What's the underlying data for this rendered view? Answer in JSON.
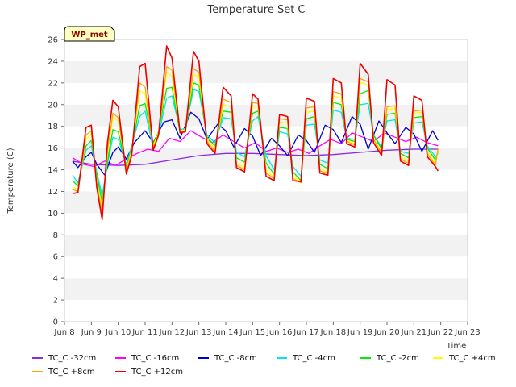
{
  "chart_data": {
    "type": "line",
    "title": "Temperature Set C",
    "xlabel": "Time",
    "ylabel": "Temperature (C)",
    "xlim": [
      8,
      23
    ],
    "ylim": [
      0,
      26
    ],
    "yticks": [
      0,
      2,
      4,
      6,
      8,
      10,
      12,
      14,
      16,
      18,
      20,
      22,
      24,
      26
    ],
    "xticks": [
      {
        "v": 8,
        "label": "Jun 8"
      },
      {
        "v": 9,
        "label": "Jun 9"
      },
      {
        "v": 10,
        "label": "Jun 10"
      },
      {
        "v": 11,
        "label": "Jun 11"
      },
      {
        "v": 12,
        "label": "Jun 12"
      },
      {
        "v": 13,
        "label": "Jun 13"
      },
      {
        "v": 14,
        "label": "Jun 14"
      },
      {
        "v": 15,
        "label": "Jun 15"
      },
      {
        "v": 16,
        "label": "Jun 16"
      },
      {
        "v": 17,
        "label": "Jun 17"
      },
      {
        "v": 18,
        "label": "Jun 18"
      },
      {
        "v": 19,
        "label": "Jun 19"
      },
      {
        "v": 20,
        "label": "Jun 20"
      },
      {
        "v": 21,
        "label": "Jun 21"
      },
      {
        "v": 22,
        "label": "Jun 22"
      },
      {
        "v": 23,
        "label": "Jun 23"
      }
    ],
    "grid": "horizontal bands",
    "legend_position": "bottom",
    "badge": "WP_met",
    "series": [
      {
        "name": "TC_C -32cm",
        "color": "#8a2be2",
        "x": [
          8.3,
          9.0,
          10.0,
          11.0,
          12.0,
          13.0,
          14.0,
          15.0,
          16.0,
          17.0,
          18.0,
          19.0,
          20.0,
          21.0,
          21.9
        ],
        "y": [
          14.8,
          14.5,
          14.4,
          14.5,
          14.9,
          15.3,
          15.5,
          15.5,
          15.4,
          15.3,
          15.4,
          15.6,
          15.8,
          15.9,
          15.9
        ]
      },
      {
        "name": "TC_C -16cm",
        "color": "#ff00ff",
        "x": [
          8.3,
          8.7,
          9.1,
          9.5,
          9.9,
          10.3,
          10.7,
          11.1,
          11.5,
          11.9,
          12.3,
          12.7,
          13.1,
          13.5,
          13.9,
          14.3,
          14.7,
          15.1,
          15.5,
          15.9,
          16.3,
          16.7,
          17.1,
          17.5,
          17.9,
          18.3,
          18.7,
          19.1,
          19.5,
          19.9,
          20.3,
          20.7,
          21.1,
          21.5,
          21.9
        ],
        "y": [
          15.1,
          14.5,
          14.3,
          14.8,
          14.4,
          15.0,
          15.5,
          15.9,
          15.7,
          16.9,
          16.6,
          17.6,
          17.0,
          16.5,
          17.2,
          16.6,
          16.0,
          16.5,
          15.7,
          16.0,
          15.6,
          15.9,
          15.5,
          16.2,
          16.8,
          16.4,
          17.4,
          17.0,
          16.6,
          17.4,
          17.0,
          16.6,
          17.0,
          16.5,
          16.2
        ]
      },
      {
        "name": "TC_C -8cm",
        "color": "#0000cd",
        "x": [
          8.3,
          8.5,
          8.8,
          9.0,
          9.2,
          9.5,
          9.8,
          10.0,
          10.3,
          10.6,
          11.0,
          11.3,
          11.7,
          12.0,
          12.3,
          12.7,
          13.0,
          13.3,
          13.7,
          14.0,
          14.3,
          14.7,
          15.0,
          15.3,
          15.7,
          16.0,
          16.3,
          16.7,
          17.0,
          17.3,
          17.7,
          18.0,
          18.3,
          18.7,
          19.0,
          19.3,
          19.7,
          20.0,
          20.3,
          20.7,
          21.0,
          21.3,
          21.7,
          21.9
        ],
        "y": [
          14.8,
          14.2,
          15.2,
          15.6,
          14.5,
          13.5,
          15.6,
          16.1,
          15.0,
          16.5,
          17.6,
          16.5,
          18.4,
          18.6,
          16.9,
          19.3,
          18.7,
          16.8,
          18.2,
          17.6,
          16.1,
          17.8,
          17.1,
          15.3,
          16.9,
          16.2,
          15.3,
          17.2,
          16.7,
          15.6,
          18.1,
          17.7,
          16.5,
          18.9,
          18.2,
          15.9,
          18.5,
          17.4,
          16.4,
          17.9,
          17.3,
          15.7,
          17.6,
          16.7
        ]
      },
      {
        "name": "TC_C -4cm",
        "color": "#00e5ee",
        "x": [
          8.3,
          8.5,
          8.8,
          9.0,
          9.2,
          9.4,
          9.6,
          9.8,
          10.0,
          10.3,
          10.5,
          10.8,
          11.0,
          11.3,
          11.5,
          11.8,
          12.0,
          12.3,
          12.5,
          12.8,
          13.0,
          13.3,
          13.6,
          13.9,
          14.2,
          14.4,
          14.7,
          15.0,
          15.2,
          15.5,
          15.8,
          16.0,
          16.3,
          16.5,
          16.8,
          17.0,
          17.3,
          17.5,
          17.8,
          18.0,
          18.3,
          18.5,
          18.8,
          19.0,
          19.3,
          19.5,
          19.8,
          20.0,
          20.3,
          20.5,
          20.8,
          21.0,
          21.3,
          21.5,
          21.8,
          21.9
        ],
        "y": [
          13.5,
          12.8,
          15.8,
          16.2,
          13.8,
          11.6,
          14.5,
          17.0,
          16.8,
          14.5,
          16.2,
          18.9,
          19.4,
          16.0,
          17.2,
          20.6,
          20.8,
          17.7,
          17.8,
          21.4,
          21.2,
          17.2,
          16.5,
          18.8,
          18.7,
          15.6,
          15.2,
          18.5,
          18.9,
          15.3,
          14.0,
          17.5,
          17.3,
          14.3,
          13.4,
          18.1,
          18.2,
          14.9,
          14.6,
          19.5,
          19.3,
          16.9,
          16.8,
          20.0,
          20.1,
          17.2,
          16.1,
          18.5,
          18.6,
          15.7,
          15.5,
          18.3,
          18.4,
          16.2,
          15.2,
          15.5
        ]
      },
      {
        "name": "TC_C -2cm",
        "color": "#00ee00",
        "x": [
          8.3,
          8.5,
          8.8,
          9.0,
          9.2,
          9.4,
          9.6,
          9.8,
          10.0,
          10.3,
          10.5,
          10.8,
          11.0,
          11.3,
          11.5,
          11.8,
          12.0,
          12.3,
          12.5,
          12.8,
          13.0,
          13.3,
          13.6,
          13.9,
          14.2,
          14.4,
          14.7,
          15.0,
          15.2,
          15.5,
          15.8,
          16.0,
          16.3,
          16.5,
          16.8,
          17.0,
          17.3,
          17.5,
          17.8,
          18.0,
          18.3,
          18.5,
          18.8,
          19.0,
          19.3,
          19.5,
          19.8,
          20.0,
          20.3,
          20.5,
          20.8,
          21.0,
          21.3,
          21.5,
          21.8,
          21.9
        ],
        "y": [
          13.0,
          12.5,
          16.2,
          16.7,
          13.5,
          11.0,
          14.8,
          17.7,
          17.5,
          14.2,
          16.0,
          19.9,
          20.1,
          16.4,
          17.5,
          21.5,
          21.6,
          17.4,
          17.6,
          22.0,
          21.8,
          17.0,
          16.2,
          19.4,
          19.3,
          15.1,
          14.7,
          19.2,
          19.4,
          14.6,
          13.6,
          17.9,
          17.8,
          13.8,
          13.0,
          18.7,
          18.9,
          14.5,
          14.1,
          20.2,
          20.0,
          16.8,
          16.6,
          21.0,
          21.3,
          17.2,
          15.9,
          19.1,
          19.2,
          15.5,
          15.1,
          18.8,
          18.9,
          16.0,
          14.9,
          15.7
        ]
      },
      {
        "name": "TC_C +4cm",
        "color": "#ffff00",
        "x": [
          8.3,
          8.5,
          8.8,
          9.0,
          9.2,
          9.4,
          9.6,
          9.8,
          10.0,
          10.3,
          10.5,
          10.8,
          11.0,
          11.3,
          11.5,
          11.8,
          12.0,
          12.3,
          12.5,
          12.8,
          13.0,
          13.3,
          13.6,
          13.9,
          14.2,
          14.4,
          14.7,
          15.0,
          15.2,
          15.5,
          15.8,
          16.0,
          16.3,
          16.5,
          16.8,
          17.0,
          17.3,
          17.5,
          17.8,
          18.0,
          18.3,
          18.5,
          18.8,
          19.0,
          19.3,
          19.5,
          19.8,
          20.0,
          20.3,
          20.5,
          20.8,
          21.0,
          21.3,
          21.5,
          21.8,
          21.9
        ],
        "y": [
          12.4,
          12.2,
          16.8,
          17.3,
          13.0,
          10.4,
          15.4,
          18.8,
          18.5,
          14.0,
          15.8,
          21.3,
          21.0,
          16.2,
          17.4,
          23.0,
          22.6,
          17.6,
          17.7,
          22.8,
          22.5,
          16.8,
          15.9,
          20.0,
          19.8,
          14.6,
          14.2,
          19.8,
          19.9,
          14.0,
          13.3,
          18.4,
          18.3,
          13.4,
          12.9,
          19.3,
          19.4,
          14.1,
          13.8,
          20.8,
          20.6,
          16.7,
          16.4,
          22.0,
          21.8,
          16.9,
          15.6,
          19.6,
          19.6,
          15.2,
          14.8,
          19.2,
          19.3,
          15.7,
          14.6,
          15.9
        ]
      },
      {
        "name": "TC_C +8cm",
        "color": "#ffa500",
        "x": [
          8.3,
          8.5,
          8.8,
          9.0,
          9.2,
          9.4,
          9.6,
          9.8,
          10.0,
          10.3,
          10.5,
          10.8,
          11.0,
          11.3,
          11.5,
          11.8,
          12.0,
          12.3,
          12.5,
          12.8,
          13.0,
          13.3,
          13.6,
          13.9,
          14.2,
          14.4,
          14.7,
          15.0,
          15.2,
          15.5,
          15.8,
          16.0,
          16.3,
          16.5,
          16.8,
          17.0,
          17.3,
          17.5,
          17.8,
          18.0,
          18.3,
          18.5,
          18.8,
          19.0,
          19.3,
          19.5,
          19.8,
          20.0,
          20.3,
          20.5,
          20.8,
          21.0,
          21.3,
          21.5,
          21.8,
          21.9
        ],
        "y": [
          12.2,
          12.0,
          17.2,
          17.6,
          12.8,
          10.0,
          15.8,
          19.2,
          18.8,
          13.8,
          15.6,
          22.0,
          21.6,
          16.0,
          17.3,
          23.5,
          23.2,
          17.5,
          17.6,
          23.3,
          23.0,
          16.6,
          15.7,
          20.5,
          20.2,
          14.4,
          14.0,
          20.2,
          20.1,
          13.7,
          13.2,
          18.7,
          18.6,
          13.2,
          12.8,
          19.7,
          19.8,
          13.9,
          13.7,
          21.2,
          21.0,
          16.6,
          16.3,
          22.4,
          22.1,
          16.8,
          15.5,
          19.8,
          19.9,
          15.0,
          14.6,
          19.4,
          19.5,
          15.5,
          14.4,
          16.0
        ]
      },
      {
        "name": "TC_C +12cm",
        "color": "#ee0000",
        "x": [
          8.3,
          8.5,
          8.8,
          9.0,
          9.2,
          9.4,
          9.6,
          9.8,
          10.0,
          10.3,
          10.5,
          10.8,
          11.0,
          11.3,
          11.5,
          11.8,
          12.0,
          12.3,
          12.5,
          12.8,
          13.0,
          13.3,
          13.6,
          13.9,
          14.2,
          14.4,
          14.7,
          15.0,
          15.2,
          15.5,
          15.8,
          16.0,
          16.3,
          16.5,
          16.8,
          17.0,
          17.3,
          17.5,
          17.8,
          18.0,
          18.3,
          18.5,
          18.8,
          19.0,
          19.3,
          19.5,
          19.8,
          20.0,
          20.3,
          20.5,
          20.8,
          21.0,
          21.3,
          21.5,
          21.8,
          21.9
        ],
        "y": [
          11.8,
          11.9,
          17.9,
          18.1,
          12.4,
          9.4,
          16.5,
          20.4,
          19.8,
          13.6,
          15.3,
          23.5,
          23.8,
          15.8,
          17.2,
          25.4,
          24.3,
          17.4,
          17.5,
          24.9,
          24.0,
          16.4,
          15.5,
          21.6,
          20.8,
          14.2,
          13.8,
          21.0,
          20.5,
          13.4,
          13.0,
          19.1,
          18.9,
          13.0,
          12.9,
          20.6,
          20.3,
          13.7,
          13.5,
          22.4,
          22.0,
          16.4,
          16.1,
          23.8,
          22.8,
          16.5,
          15.3,
          22.3,
          21.8,
          14.8,
          14.4,
          20.8,
          20.4,
          15.2,
          14.3,
          13.9
        ]
      }
    ]
  }
}
